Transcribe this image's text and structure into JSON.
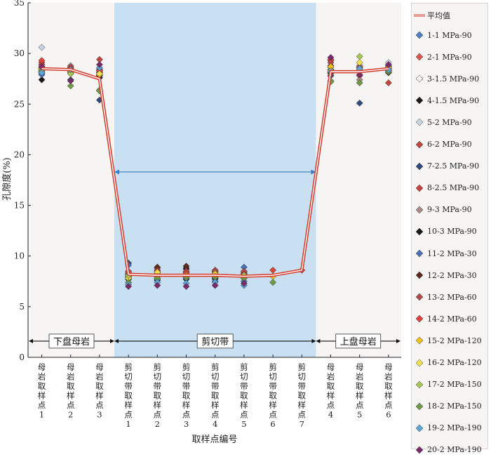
{
  "chart_data": {
    "type": "line",
    "ylabel": "孔隙度(%)",
    "xlabel": "取样点编号",
    "ylim": [
      0,
      35
    ],
    "yticks": [
      0,
      5,
      10,
      15,
      20,
      25,
      30,
      35
    ],
    "categories": [
      [
        "母",
        "岩",
        "取",
        "样",
        "点",
        "1"
      ],
      [
        "母",
        "岩",
        "取",
        "样",
        "点",
        "2"
      ],
      [
        "母",
        "岩",
        "取",
        "样",
        "点",
        "3"
      ],
      [
        "剪",
        "切",
        "带",
        "取",
        "样",
        "点",
        "1"
      ],
      [
        "剪",
        "切",
        "带",
        "取",
        "样",
        "点",
        "2"
      ],
      [
        "剪",
        "切",
        "带",
        "取",
        "样",
        "点",
        "3"
      ],
      [
        "剪",
        "切",
        "带",
        "取",
        "样",
        "点",
        "4"
      ],
      [
        "剪",
        "切",
        "带",
        "取",
        "样",
        "点",
        "5"
      ],
      [
        "剪",
        "切",
        "带",
        "取",
        "样",
        "点",
        "6"
      ],
      [
        "剪",
        "切",
        "带",
        "取",
        "样",
        "点",
        "7"
      ],
      [
        "母",
        "岩",
        "取",
        "样",
        "点",
        "4"
      ],
      [
        "母",
        "岩",
        "取",
        "样",
        "点",
        "5"
      ],
      [
        "母",
        "岩",
        "取",
        "样",
        "点",
        "6"
      ]
    ],
    "zones": [
      {
        "label": "下盘母岩",
        "from": 0,
        "to": 2
      },
      {
        "label": "剪切带",
        "from": 3,
        "to": 9
      },
      {
        "label": "上盘母岩",
        "from": 10,
        "to": 12
      }
    ],
    "mean_line": {
      "name": "平均值",
      "color": "#d33b2c",
      "values": [
        28.5,
        28.4,
        27.5,
        8.2,
        8.1,
        8.1,
        8.1,
        8.0,
        8.1,
        8.6,
        28.2,
        28.2,
        28.5
      ]
    },
    "series": [
      {
        "name": "1-1 MPa-90",
        "color": "#4e7fc4",
        "values": [
          28.0,
          28.5,
          28.3,
          8.0,
          7.8,
          7.9,
          7.7,
          7.5,
          null,
          null,
          28.0,
          28.3,
          28.6
        ]
      },
      {
        "name": "2-1 MPa-90",
        "color": "#d9544f",
        "values": [
          28.9,
          28.6,
          28.1,
          8.5,
          8.3,
          8.2,
          8.4,
          8.1,
          null,
          null,
          28.3,
          28.4,
          28.2
        ]
      },
      {
        "name": "3-1.5 MPa-90",
        "color": "#f0f0f0",
        "values": [
          28.3,
          28.2,
          27.9,
          8.1,
          8.0,
          8.0,
          8.0,
          8.0,
          null,
          null,
          28.1,
          28.2,
          28.4
        ]
      },
      {
        "name": "4-1.5 MPa-90",
        "color": "#1a1a1a",
        "values": [
          27.4,
          28.0,
          27.6,
          7.8,
          7.6,
          7.7,
          7.8,
          7.9,
          null,
          null,
          27.8,
          28.6,
          28.1
        ]
      },
      {
        "name": "5-2 MPa-90",
        "color": "#c9d3e6",
        "values": [
          30.6,
          28.8,
          28.5,
          8.0,
          8.1,
          8.2,
          8.0,
          8.0,
          null,
          null,
          28.6,
          28.8,
          29.1
        ]
      },
      {
        "name": "6-2 MPa-90",
        "color": "#c0463f",
        "values": [
          29.1,
          28.7,
          29.4,
          8.3,
          8.6,
          8.4,
          8.5,
          8.3,
          null,
          null,
          29.3,
          28.3,
          27.1
        ]
      },
      {
        "name": "7-2.5 MPa-90",
        "color": "#2f4a7e",
        "values": [
          28.1,
          27.4,
          25.4,
          9.3,
          8.4,
          8.1,
          8.2,
          8.0,
          null,
          null,
          27.8,
          25.1,
          28.3
        ]
      },
      {
        "name": "8-2.5 MPa-90",
        "color": "#c8423c",
        "values": [
          28.7,
          28.4,
          28.1,
          8.2,
          8.8,
          8.7,
          8.6,
          8.4,
          null,
          null,
          28.4,
          27.8,
          28.7
        ]
      },
      {
        "name": "9-3 MPa-90",
        "color": "#a88b86",
        "values": [
          28.4,
          28.3,
          27.8,
          7.9,
          8.0,
          8.1,
          8.1,
          8.0,
          null,
          null,
          28.0,
          27.4,
          28.5
        ]
      },
      {
        "name": "10-3 MPa-90",
        "color": "#1a1a1a",
        "values": [
          28.2,
          28.1,
          27.8,
          7.7,
          7.8,
          8.8,
          8.2,
          8.0,
          null,
          null,
          28.1,
          28.2,
          28.3
        ]
      },
      {
        "name": "11-2 MPa-30",
        "color": "#4b6fb6",
        "values": [
          27.9,
          28.0,
          28.4,
          9.1,
          7.7,
          7.8,
          7.5,
          8.9,
          null,
          null,
          28.4,
          28.6,
          28.8
        ]
      },
      {
        "name": "12-2 MPa-30",
        "color": "#5b2a1c",
        "values": [
          28.6,
          28.2,
          27.9,
          8.0,
          8.9,
          9.0,
          8.0,
          7.8,
          null,
          null,
          28.8,
          28.2,
          28.2
        ]
      },
      {
        "name": "13-2 MPa-60",
        "color": "#b0494a",
        "values": [
          28.9,
          28.4,
          28.2,
          8.2,
          8.6,
          8.5,
          8.6,
          8.5,
          null,
          null,
          29.1,
          28.7,
          28.6
        ]
      },
      {
        "name": "14-2 MPa-60",
        "color": "#e0413a",
        "values": [
          29.3,
          28.5,
          28.3,
          8.4,
          8.5,
          8.3,
          8.4,
          8.2,
          8.6,
          8.6,
          29.4,
          28.3,
          28.5
        ]
      },
      {
        "name": "15-2 MPa-120",
        "color": "#f2c018",
        "values": [
          28.5,
          28.1,
          27.9,
          8.0,
          8.2,
          8.1,
          8.3,
          8.1,
          8.0,
          null,
          28.7,
          28.4,
          28.6
        ]
      },
      {
        "name": "16-2 MPa-120",
        "color": "#f4e04a",
        "values": [
          28.4,
          28.3,
          28.0,
          7.8,
          8.4,
          8.0,
          8.2,
          8.0,
          null,
          null,
          28.3,
          29.1,
          28.4
        ]
      },
      {
        "name": "17-2 MPa-150",
        "color": "#a6c955",
        "values": [
          28.2,
          28.0,
          26.4,
          8.1,
          8.0,
          7.9,
          8.0,
          8.1,
          null,
          null,
          27.3,
          29.7,
          28.2
        ]
      },
      {
        "name": "18-2 MPa-150",
        "color": "#6f9a45",
        "values": [
          28.3,
          26.8,
          26.3,
          7.4,
          7.8,
          8.0,
          7.9,
          7.8,
          7.4,
          null,
          27.2,
          27.1,
          28.3
        ]
      },
      {
        "name": "19-2 MPa-190",
        "color": "#5da6d9",
        "values": [
          28.1,
          28.4,
          28.6,
          7.2,
          7.4,
          7.3,
          7.4,
          7.1,
          null,
          null,
          28.2,
          28.5,
          28.4
        ]
      },
      {
        "name": "20-2 MPa-190",
        "color": "#7a2a6a",
        "values": [
          28.7,
          27.3,
          28.9,
          7.0,
          7.1,
          7.0,
          7.1,
          7.3,
          null,
          null,
          29.6,
          27.9,
          28.9
        ]
      }
    ]
  }
}
